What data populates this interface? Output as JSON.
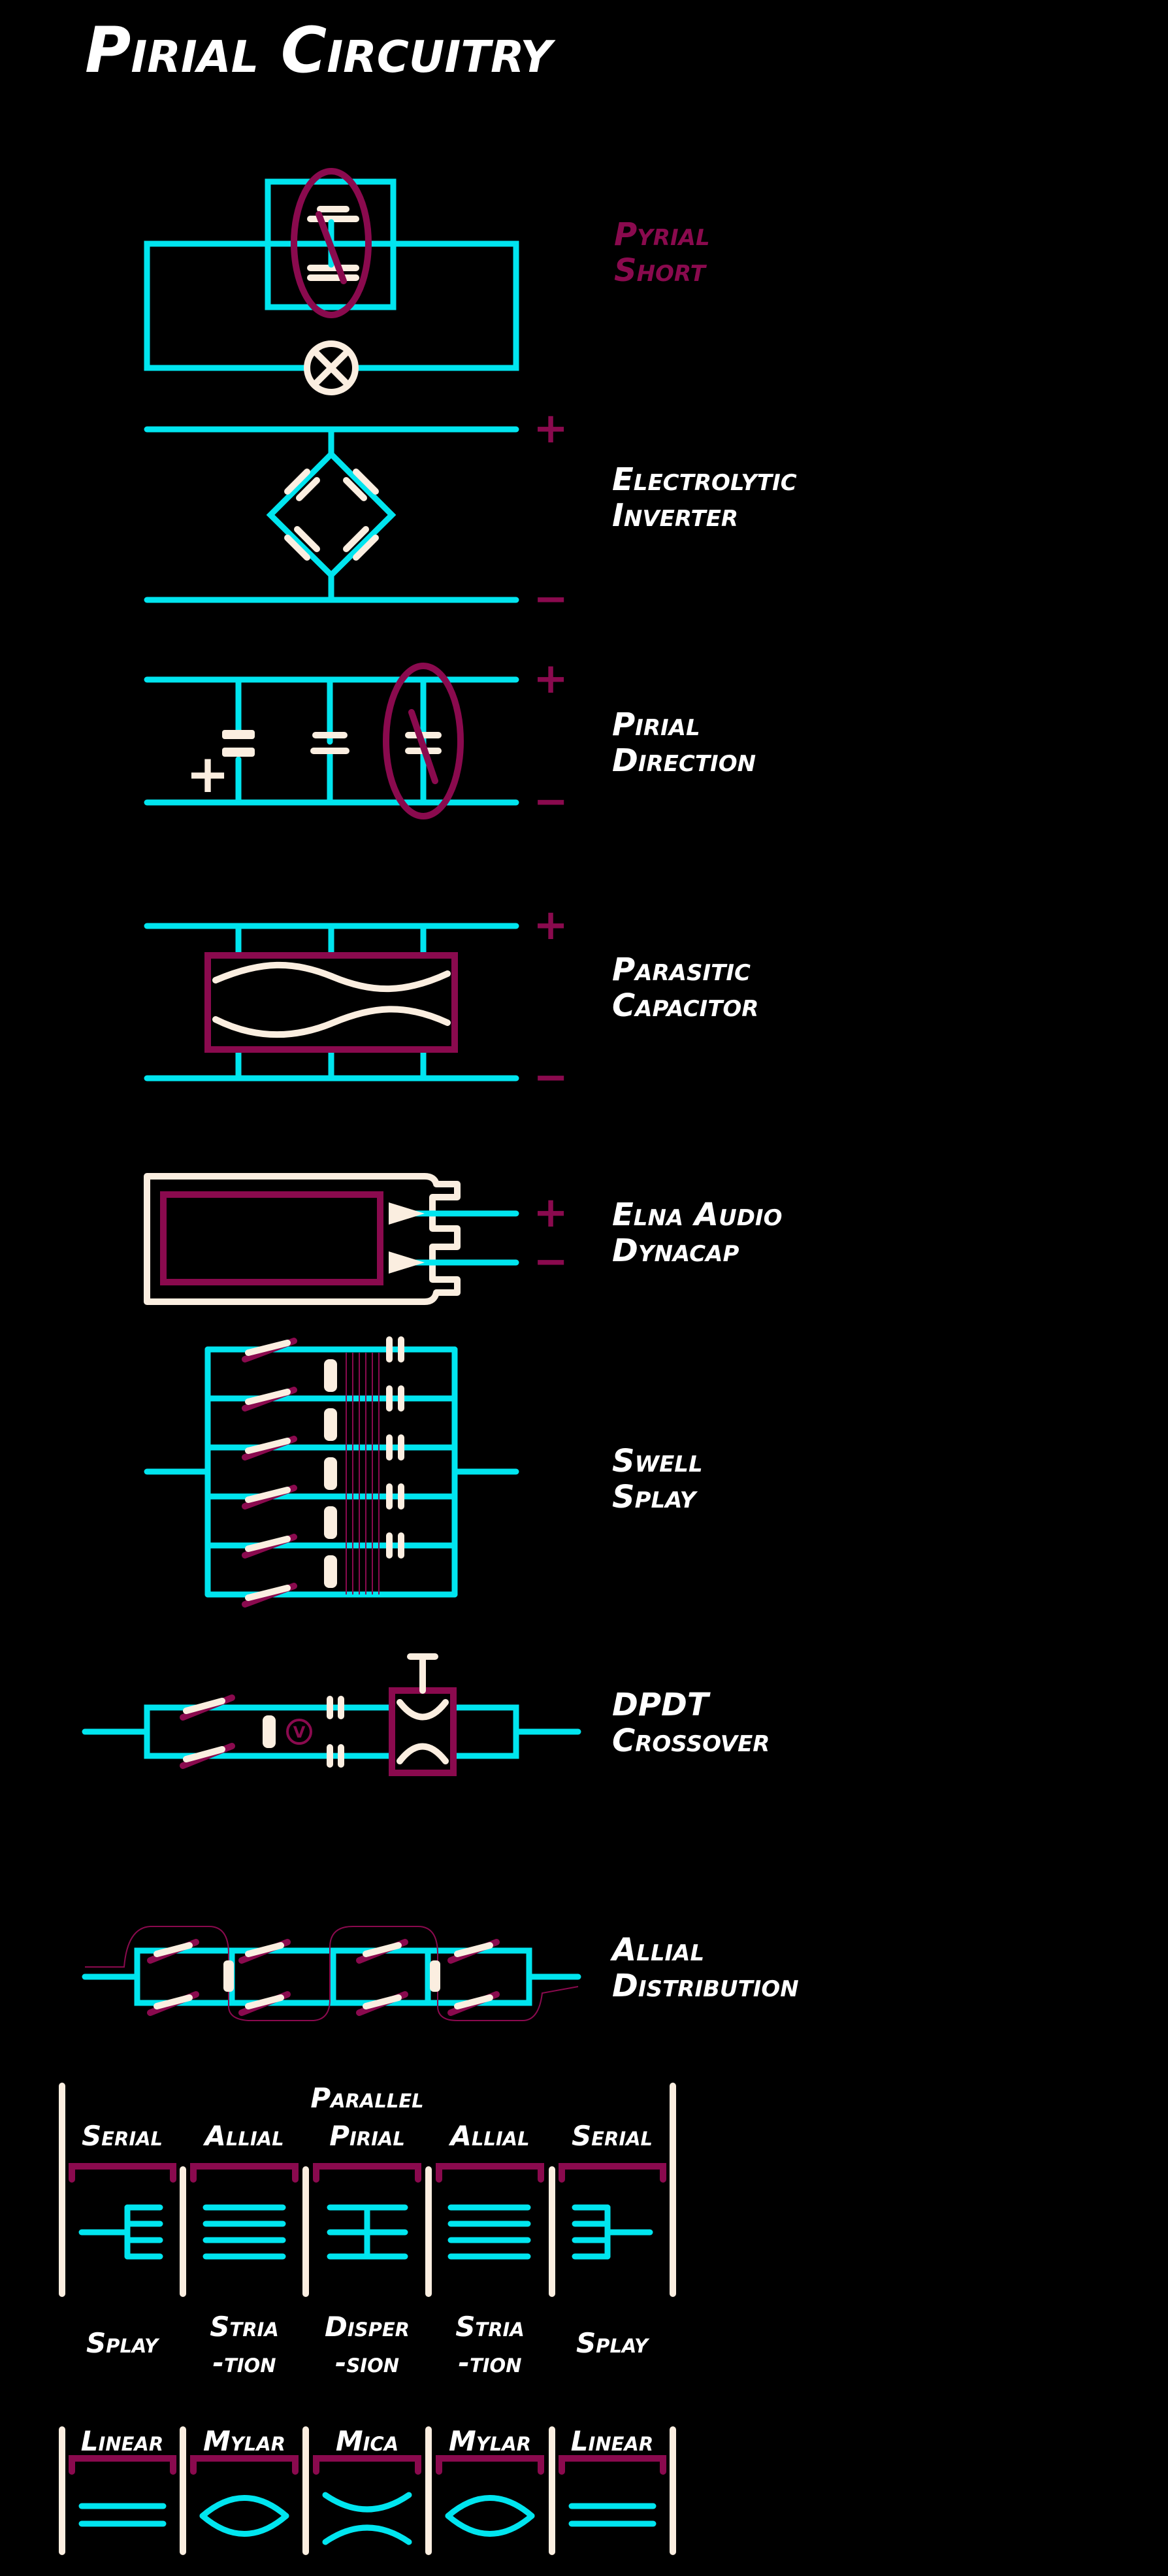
{
  "title": "Pirial Circuitry",
  "colors": {
    "background": "#000000",
    "wire": "#00e5ef",
    "accent": "#8a0a4e",
    "component": "#fbeee0",
    "text": "#ffffff"
  },
  "symbols": {
    "plus": "+",
    "minus": "−"
  },
  "circuits": [
    {
      "line1": "Pyrial",
      "line2": "Short",
      "accent": true
    },
    {
      "line1": "Electrolytic",
      "line2": "Inverter"
    },
    {
      "line1": "Pirial",
      "line2": "Direction"
    },
    {
      "line1": "Parasitic",
      "line2": "Capacitor"
    },
    {
      "line1": "Elna Audio",
      "line2": "Dynacap"
    },
    {
      "line1": "Swell",
      "line2": "Splay"
    },
    {
      "line1": "DPDT",
      "line2": "Crossover"
    },
    {
      "line1": "Allial",
      "line2": "Distribution"
    }
  ],
  "capacitor_types": {
    "header": "Parallel",
    "columns": [
      "Serial",
      "Allial",
      "Pirial",
      "Allial",
      "Serial"
    ],
    "effects": [
      {
        "line1": "Splay",
        "line2": ""
      },
      {
        "line1": "Stria",
        "line2": "-tion"
      },
      {
        "line1": "Disper",
        "line2": "-sion"
      },
      {
        "line1": "Stria",
        "line2": "-tion"
      },
      {
        "line1": "Splay",
        "line2": ""
      }
    ]
  },
  "dielectrics": [
    "Linear",
    "Mylar",
    "Mica",
    "Mylar",
    "Linear"
  ]
}
